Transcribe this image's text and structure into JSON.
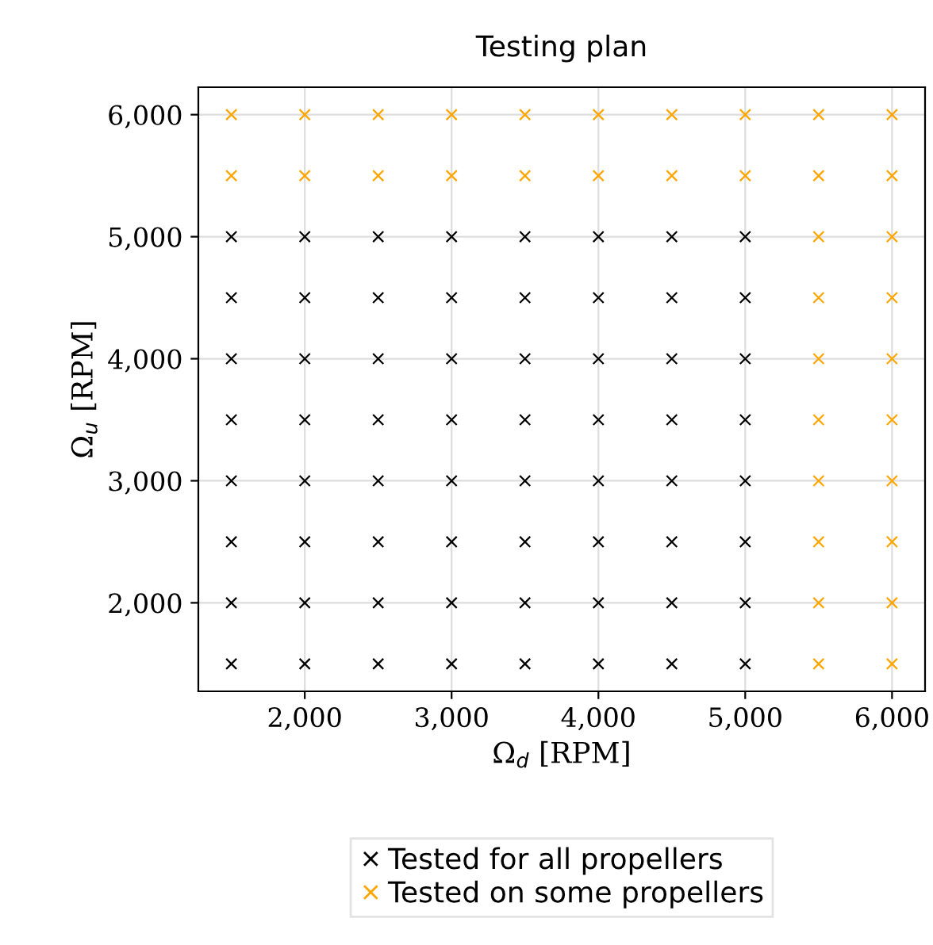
{
  "chart_data": {
    "type": "scatter",
    "title": "Testing plan",
    "xlabel": "Ω$_{d}$ [RPM]",
    "ylabel": "Ω$_{u}$ [RPM]",
    "xlim": [
      1275,
      6225
    ],
    "ylim": [
      1275,
      6225
    ],
    "xticks": [
      {
        "value": 2000,
        "label": "2,000"
      },
      {
        "value": 3000,
        "label": "3,000"
      },
      {
        "value": 4000,
        "label": "4,000"
      },
      {
        "value": 5000,
        "label": "5,000"
      },
      {
        "value": 6000,
        "label": "6,000"
      }
    ],
    "yticks": [
      {
        "value": 2000,
        "label": "2,000"
      },
      {
        "value": 3000,
        "label": "3,000"
      },
      {
        "value": 4000,
        "label": "4,000"
      },
      {
        "value": 5000,
        "label": "5,000"
      },
      {
        "value": 6000,
        "label": "6,000"
      }
    ],
    "grid": true,
    "legend": "bottom",
    "marker": "cross",
    "series": [
      {
        "name": "Tested for all propellers",
        "color": "#000000",
        "x": [
          1500,
          2000,
          2500,
          3000,
          3500,
          4000,
          4500,
          5000,
          1500,
          2000,
          2500,
          3000,
          3500,
          4000,
          4500,
          5000,
          1500,
          2000,
          2500,
          3000,
          3500,
          4000,
          4500,
          5000,
          1500,
          2000,
          2500,
          3000,
          3500,
          4000,
          4500,
          5000,
          1500,
          2000,
          2500,
          3000,
          3500,
          4000,
          4500,
          5000,
          1500,
          2000,
          2500,
          3000,
          3500,
          4000,
          4500,
          5000,
          1500,
          2000,
          2500,
          3000,
          3500,
          4000,
          4500,
          5000,
          1500,
          2000,
          2500,
          3000,
          3500,
          4000,
          4500,
          5000
        ],
        "values": [
          1500,
          1500,
          1500,
          1500,
          1500,
          1500,
          1500,
          1500,
          2000,
          2000,
          2000,
          2000,
          2000,
          2000,
          2000,
          2000,
          2500,
          2500,
          2500,
          2500,
          2500,
          2500,
          2500,
          2500,
          3000,
          3000,
          3000,
          3000,
          3000,
          3000,
          3000,
          3000,
          3500,
          3500,
          3500,
          3500,
          3500,
          3500,
          3500,
          3500,
          4000,
          4000,
          4000,
          4000,
          4000,
          4000,
          4000,
          4000,
          4500,
          4500,
          4500,
          4500,
          4500,
          4500,
          4500,
          4500,
          5000,
          5000,
          5000,
          5000,
          5000,
          5000,
          5000,
          5000
        ]
      },
      {
        "name": "Tested on some propellers",
        "color": "#ffa500",
        "x": [
          1500,
          2000,
          2500,
          3000,
          3500,
          4000,
          4500,
          5000,
          5500,
          6000,
          1500,
          2000,
          2500,
          3000,
          3500,
          4000,
          4500,
          5000,
          5500,
          6000,
          5500,
          6000,
          5500,
          6000,
          5500,
          6000,
          5500,
          6000,
          5500,
          6000,
          5500,
          6000,
          5500,
          6000,
          5500,
          6000
        ],
        "values": [
          5500,
          5500,
          5500,
          5500,
          5500,
          5500,
          5500,
          5500,
          5500,
          5500,
          6000,
          6000,
          6000,
          6000,
          6000,
          6000,
          6000,
          6000,
          6000,
          6000,
          1500,
          1500,
          2000,
          2000,
          2500,
          2500,
          3000,
          3000,
          3500,
          3500,
          4000,
          4000,
          4500,
          4500,
          5000,
          5000
        ]
      }
    ]
  }
}
